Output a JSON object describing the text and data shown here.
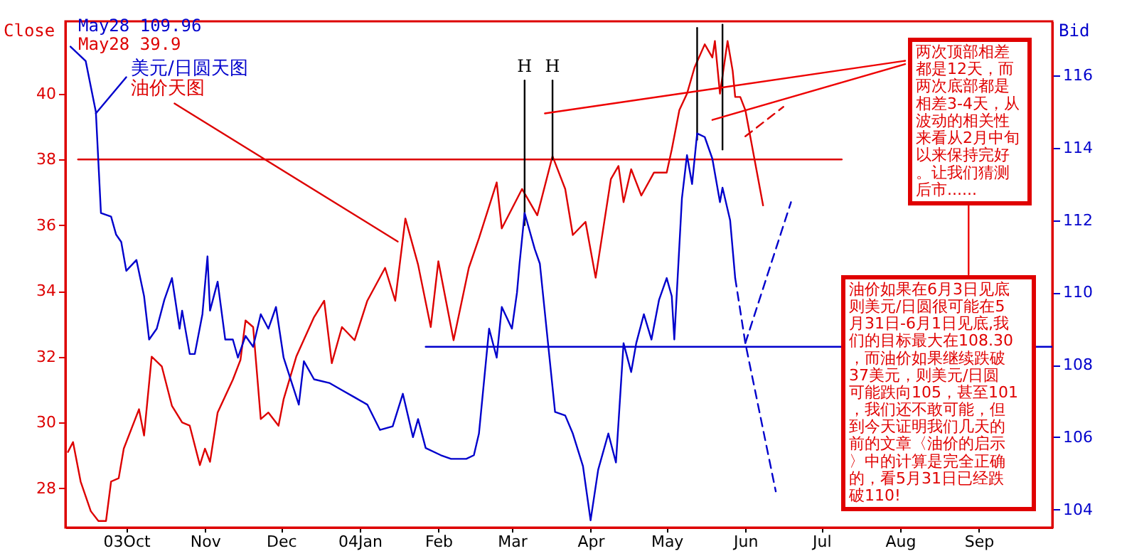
{
  "chart_data": {
    "type": "line",
    "ylabel": "Close",
    "y2label": "Bid",
    "xlim": [
      "2003-09-07",
      "2004-09-30"
    ],
    "xticks": [
      {
        "value": "2003-10-01",
        "label": "03Oct"
      },
      {
        "value": "2003-11-01",
        "label": "Nov"
      },
      {
        "value": "2003-12-01",
        "label": "Dec"
      },
      {
        "value": "2004-01-01",
        "label": "04Jan"
      },
      {
        "value": "2004-02-01",
        "label": "Feb"
      },
      {
        "value": "2004-03-01",
        "label": "Mar"
      },
      {
        "value": "2004-04-01",
        "label": "Apr"
      },
      {
        "value": "2004-05-01",
        "label": "May"
      },
      {
        "value": "2004-06-01",
        "label": "Jun"
      },
      {
        "value": "2004-07-01",
        "label": "Jul"
      },
      {
        "value": "2004-08-01",
        "label": "Aug"
      },
      {
        "value": "2004-09-01",
        "label": "Sep"
      }
    ],
    "ylim": [
      26.8,
      42.2
    ],
    "yticks": [
      28,
      30,
      32,
      34,
      36,
      38,
      40
    ],
    "y2lim": [
      103.5,
      117.5
    ],
    "y2ticks": [
      104,
      106,
      108,
      110,
      112,
      114,
      116
    ],
    "grid": false,
    "legend": "top left",
    "series": [
      {
        "name": "美元/日圆天图",
        "color": "#0000cc",
        "axis": "y2",
        "x": [
          "2003-09-09",
          "2003-09-15",
          "2003-09-19",
          "2003-09-21",
          "2003-09-25",
          "2003-09-27",
          "2003-09-29",
          "2003-10-01",
          "2003-10-05",
          "2003-10-08",
          "2003-10-10",
          "2003-10-13",
          "2003-10-16",
          "2003-10-19",
          "2003-10-22",
          "2003-10-23",
          "2003-10-26",
          "2003-10-28",
          "2003-10-31",
          "2003-11-02",
          "2003-11-03",
          "2003-11-06",
          "2003-11-09",
          "2003-11-12",
          "2003-11-14",
          "2003-11-17",
          "2003-11-20",
          "2003-11-23",
          "2003-11-26",
          "2003-11-29",
          "2003-12-02",
          "2003-12-08",
          "2003-12-10",
          "2003-12-14",
          "2003-12-20",
          "2003-12-25",
          "2003-12-30",
          "2004-01-04",
          "2004-01-09",
          "2004-01-14",
          "2004-01-18",
          "2004-01-22",
          "2004-01-24",
          "2004-01-27",
          "2004-02-02",
          "2004-02-06",
          "2004-02-12",
          "2004-02-15",
          "2004-02-17",
          "2004-02-21",
          "2004-02-24",
          "2004-02-26",
          "2004-03-01",
          "2004-03-03",
          "2004-03-04",
          "2004-03-06",
          "2004-03-10",
          "2004-03-12",
          "2004-03-18",
          "2004-03-22",
          "2004-03-25",
          "2004-03-29",
          "2004-04-01",
          "2004-04-04",
          "2004-04-08",
          "2004-04-11",
          "2004-04-14",
          "2004-04-17",
          "2004-04-19",
          "2004-04-22",
          "2004-04-25",
          "2004-04-28",
          "2004-05-01",
          "2004-05-03",
          "2004-05-04",
          "2004-05-07",
          "2004-05-09",
          "2004-05-11",
          "2004-05-13",
          "2004-05-16",
          "2004-05-19",
          "2004-05-22",
          "2004-05-23",
          "2004-05-26",
          "2004-05-28"
        ],
        "values": [
          116.8,
          116.4,
          115.0,
          112.2,
          112.1,
          111.6,
          111.4,
          110.6,
          110.9,
          109.9,
          108.7,
          109.0,
          109.8,
          110.4,
          109.0,
          109.5,
          108.3,
          108.3,
          109.4,
          111.0,
          109.5,
          110.3,
          108.7,
          108.7,
          108.2,
          108.8,
          108.5,
          109.4,
          109.0,
          109.6,
          108.2,
          106.9,
          108.1,
          107.6,
          107.5,
          107.3,
          107.1,
          106.9,
          106.2,
          106.3,
          107.2,
          106.0,
          106.5,
          105.7,
          105.5,
          105.4,
          105.4,
          105.5,
          106.1,
          109.0,
          108.2,
          109.6,
          109.0,
          110.0,
          110.8,
          112.2,
          111.2,
          110.8,
          106.7,
          106.6,
          106.1,
          105.2,
          103.7,
          105.1,
          106.1,
          105.3,
          108.6,
          107.8,
          108.6,
          109.4,
          108.7,
          109.8,
          110.4,
          109.9,
          108.7,
          112.6,
          113.8,
          113.0,
          114.4,
          114.3,
          113.7,
          112.5,
          112.9,
          112.0,
          110.4
        ]
      },
      {
        "name": "油价天图",
        "color": "#dd0000",
        "x": [
          "2003-09-08",
          "2003-09-10",
          "2003-09-13",
          "2003-09-17",
          "2003-09-20",
          "2003-09-23",
          "2003-09-25",
          "2003-09-28",
          "2003-09-30",
          "2003-10-06",
          "2003-10-08",
          "2003-10-11",
          "2003-10-15",
          "2003-10-19",
          "2003-10-23",
          "2003-10-26",
          "2003-10-30",
          "2003-11-01",
          "2003-11-03",
          "2003-11-06",
          "2003-11-12",
          "2003-11-15",
          "2003-11-17",
          "2003-11-20",
          "2003-11-23",
          "2003-11-26",
          "2003-11-30",
          "2003-12-02",
          "2003-12-07",
          "2003-12-14",
          "2003-12-18",
          "2003-12-21",
          "2003-12-25",
          "2003-12-30",
          "2004-01-04",
          "2004-01-11",
          "2004-01-15",
          "2004-01-19",
          "2004-01-24",
          "2004-01-29",
          "2004-02-01",
          "2004-02-07",
          "2004-02-13",
          "2004-02-17",
          "2004-02-24",
          "2004-02-26",
          "2004-03-05",
          "2004-03-11",
          "2004-03-17",
          "2004-03-22",
          "2004-03-25",
          "2004-03-30",
          "2004-04-03",
          "2004-04-09",
          "2004-04-12",
          "2004-04-14",
          "2004-04-17",
          "2004-04-21",
          "2004-04-26",
          "2004-05-01",
          "2004-05-03",
          "2004-05-06",
          "2004-05-09",
          "2004-05-12",
          "2004-05-16",
          "2004-05-19",
          "2004-05-20",
          "2004-05-22",
          "2004-05-25",
          "2004-05-27",
          "2004-05-28",
          "2004-05-30",
          "2004-06-01",
          "2004-06-08"
        ],
        "values": [
          29.1,
          29.4,
          28.2,
          27.3,
          27.0,
          27.0,
          28.2,
          28.3,
          29.2,
          30.4,
          29.6,
          32.0,
          31.7,
          30.5,
          30.0,
          29.9,
          28.7,
          29.2,
          28.8,
          30.3,
          31.3,
          31.9,
          33.1,
          32.9,
          30.1,
          30.3,
          29.9,
          30.7,
          32.0,
          33.2,
          33.7,
          31.8,
          32.9,
          32.5,
          33.7,
          34.7,
          33.7,
          36.2,
          34.8,
          32.9,
          34.9,
          32.5,
          34.7,
          35.6,
          37.3,
          35.9,
          37.1,
          36.3,
          38.1,
          37.1,
          35.7,
          36.1,
          34.4,
          37.4,
          37.8,
          36.7,
          37.7,
          36.9,
          37.6,
          37.6,
          38.3,
          39.5,
          40.0,
          40.8,
          41.5,
          41.1,
          41.6,
          40.0,
          41.6,
          40.7,
          39.9,
          39.9,
          39.5,
          36.6
        ]
      },
      {
        "color": "#dd0000",
        "line_style": "dashed",
        "x": [
          "2004-06-01",
          "2004-06-16"
        ],
        "values": [
          38.7,
          39.6
        ]
      },
      {
        "color": "#0000cc",
        "axis": "y2",
        "line_style": "dashed",
        "x": [
          "2004-05-28",
          "2004-06-01",
          "2004-06-13"
        ],
        "values": [
          110.4,
          108.6,
          104.5
        ]
      },
      {
        "color": "#0000cc",
        "axis": "y2",
        "line_style": "dashed",
        "x": [
          "2004-06-01",
          "2004-06-19"
        ],
        "values": [
          108.6,
          112.5
        ]
      },
      {
        "color": "#dd0000",
        "x": [
          "2003-09-12",
          "2004-07-09"
        ],
        "values": [
          38,
          38
        ]
      },
      {
        "color": "#0000cc",
        "axis": "y2",
        "x": [
          "2004-01-27",
          "2004-09-30"
        ],
        "values": [
          108.5,
          108.5
        ]
      },
      {
        "color": "#000000",
        "x": [
          "2004-03-06",
          "2004-03-06"
        ],
        "values": [
          40.4,
          36.0
        ]
      },
      {
        "color": "#000000",
        "x": [
          "2004-03-17",
          "2004-03-17"
        ],
        "values": [
          40.4,
          38.0
        ]
      },
      {
        "color": "#000000",
        "x": [
          "2004-05-13",
          "2004-05-13"
        ],
        "values": [
          42.0,
          38.6
        ]
      },
      {
        "color": "#000000",
        "x": [
          "2004-05-23",
          "2004-05-23"
        ],
        "values": [
          42.1,
          38.3
        ]
      },
      {
        "color": "#dd0000",
        "x": [
          "2003-10-20",
          "2004-01-16"
        ],
        "values": [
          39.7,
          35.5
        ]
      },
      {
        "color": "#0000cc",
        "x": [
          "2003-09-19",
          "2003-10-01"
        ],
        "values": [
          39.4,
          40.5
        ]
      },
      {
        "color": "#ee0000",
        "x": [
          "2004-03-14",
          "2004-08-03"
        ],
        "values": [
          39.4,
          41.0
        ]
      },
      {
        "color": "#ee0000",
        "x": [
          "2004-05-19",
          "2004-08-03"
        ],
        "values": [
          39.2,
          40.9
        ]
      },
      {
        "color": "#ee0000",
        "x": [
          "2004-08-28",
          "2004-08-28"
        ],
        "values": [
          36.6,
          34.5
        ]
      }
    ],
    "annotations": [
      "May28 109.96",
      "May28 39.9",
      "两次顶部相差都是12天，而两次底部都是相差3-4天，从波动的相关性来看从2月中旬以来保持完好。让我们猜测后市......",
      "油价如果在6月3日见底则美元/日圆很可能在5月31日-6月1日见底,我们的目标最大在108.30，而油价如果继续跌破37美元，则美元/日圆可能跌向105，甚至101，我们还不敢可能，但到今天证明我们几天的前的文章〈油价的启示〉中的计算是完全正确的，看5月31日已经跌破110!",
      {
        "text": "H",
        "x": "2004-03-06",
        "y": 40.4
      },
      {
        "text": "H",
        "x": "2004-03-17",
        "y": 40.4
      }
    ]
  }
}
